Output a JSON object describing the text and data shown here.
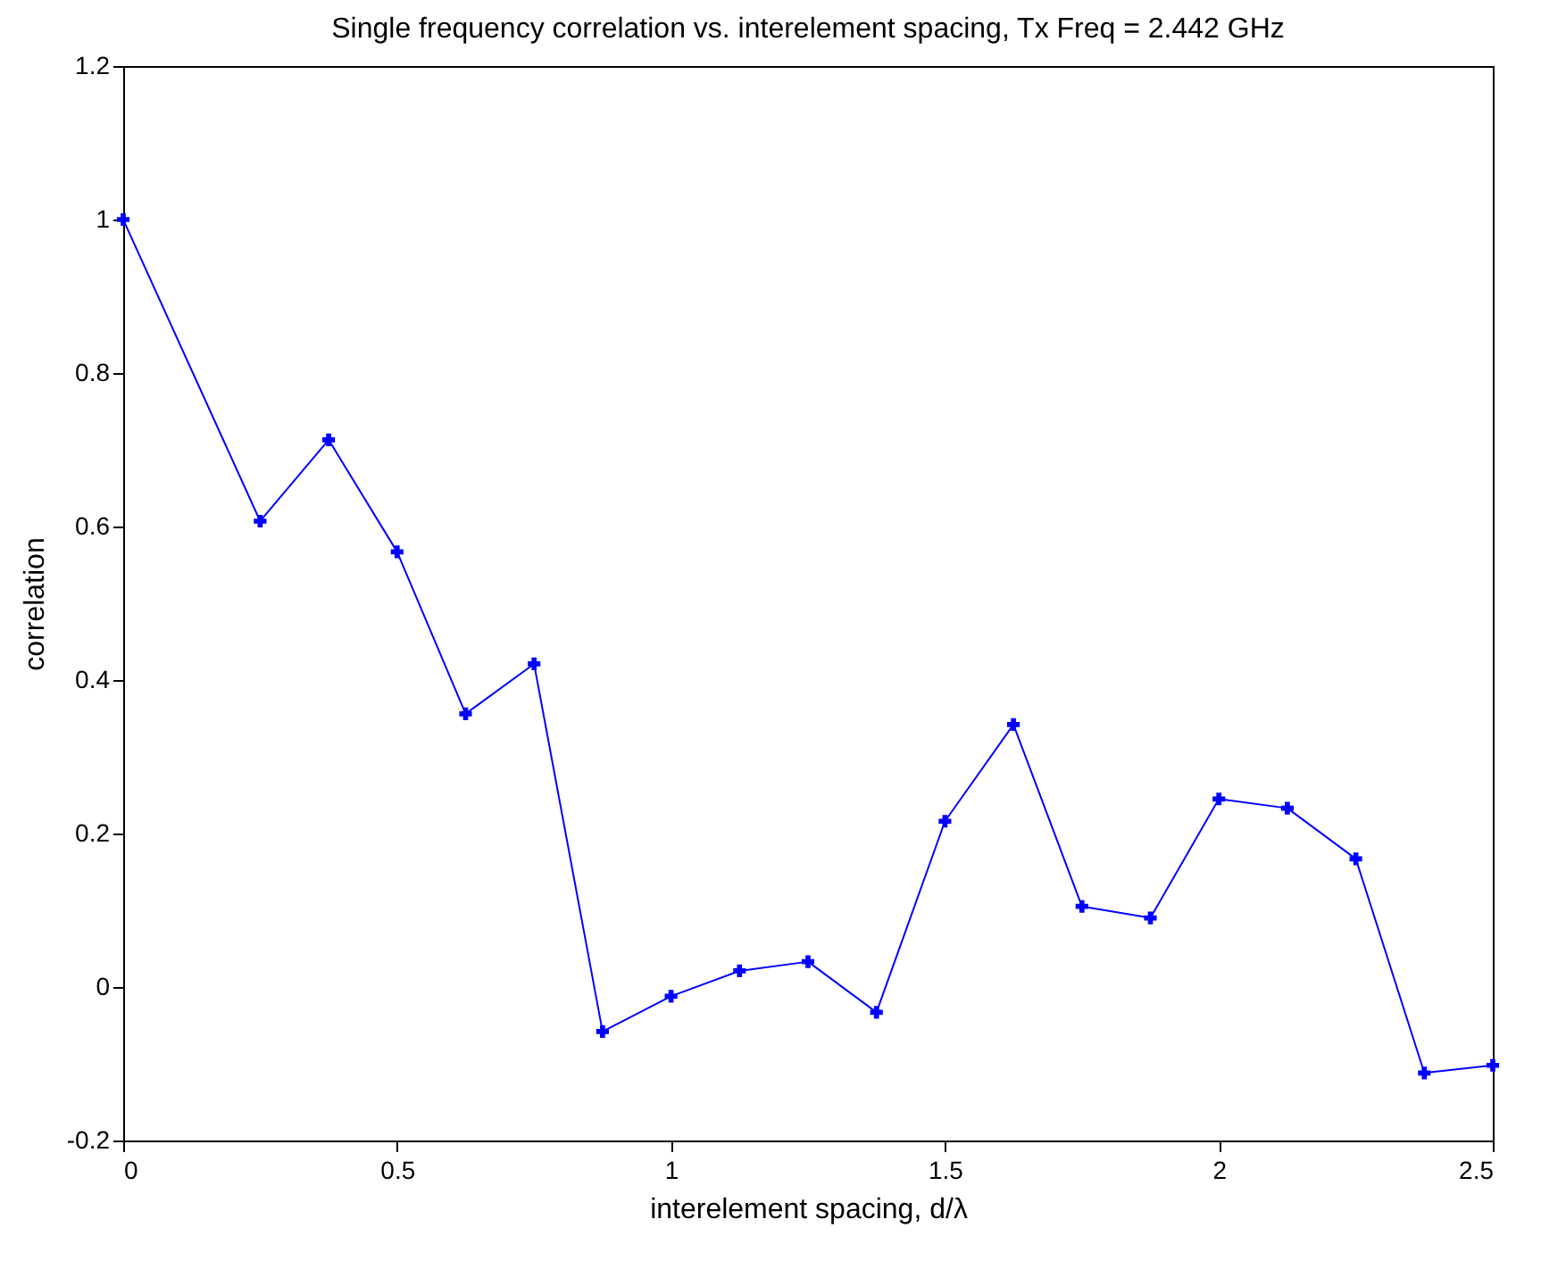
{
  "chart_data": {
    "type": "line",
    "title": "Single frequency correlation vs. interelement spacing, Tx Freq = 2.442 GHz",
    "xlabel": "interelement spacing, d/λ",
    "ylabel": "correlation",
    "x": [
      0,
      0.25,
      0.375,
      0.5,
      0.625,
      0.75,
      0.875,
      1,
      1.125,
      1.25,
      1.375,
      1.5,
      1.625,
      1.75,
      1.875,
      2,
      2.125,
      2.25,
      2.375,
      2.5
    ],
    "series": [
      {
        "color": "#0000ff",
        "values": [
          1.0,
          0.607,
          0.713,
          0.567,
          0.356,
          0.421,
          -0.058,
          -0.012,
          0.021,
          0.033,
          -0.033,
          0.216,
          0.342,
          0.105,
          0.09,
          0.245,
          0.233,
          0.167,
          -0.112,
          -0.102
        ]
      }
    ],
    "xlim": [
      0,
      2.5
    ],
    "xticks": [
      0,
      0.5,
      1,
      1.5,
      2,
      2.5
    ],
    "ylim": [
      -0.2,
      1.2
    ],
    "yticks": [
      -0.2,
      0,
      0.2,
      0.4,
      0.6,
      0.8,
      1,
      1.2
    ],
    "grid": false,
    "legend": false,
    "marker": "cross",
    "line_style": "solid"
  }
}
